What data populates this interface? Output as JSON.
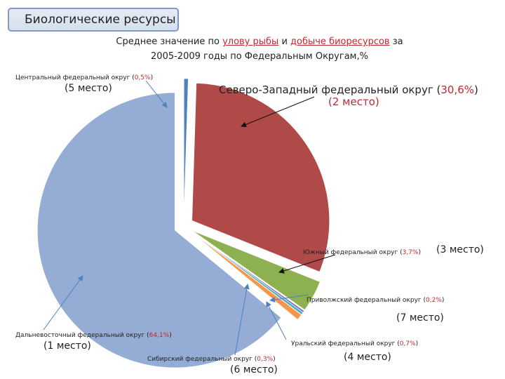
{
  "section_title": "Биологические ресурсы",
  "chart_data": {
    "type": "pie",
    "title_parts": [
      {
        "text": "Среднее значение по ",
        "highlight": false
      },
      {
        "text": "улову рыбы",
        "highlight": true
      },
      {
        "text": " и ",
        "highlight": false
      },
      {
        "text": "добыче биоресурсов",
        "highlight": true
      },
      {
        "text": " за",
        "highlight": false
      }
    ],
    "title_line2": "2005-2009 годы по Федеральным Округам,%",
    "slices": [
      {
        "name": "Центральный федеральный округ",
        "value": 0.5,
        "value_label": "0,5%",
        "rank": "(5 место)",
        "color": "#4f81bd",
        "exploded": true
      },
      {
        "name": "Северо-Западный федеральный округ",
        "value": 30.6,
        "value_label": "30,6%",
        "rank": "(2 место)",
        "color": "#b04a48",
        "exploded": true
      },
      {
        "name": "Южный федеральный округ",
        "value": 3.7,
        "value_label": "3,7%",
        "rank": "(3 место)",
        "color": "#8db050",
        "exploded": true
      },
      {
        "name": "Приволжский федеральный округ",
        "value": 0.2,
        "value_label": "0,2%",
        "rank": "(7 место)",
        "color": "#7a62a8",
        "exploded": true
      },
      {
        "name": "Сибирский федеральный округ",
        "value": 0.3,
        "value_label": "0,3%",
        "rank": "(6 место)",
        "color": "#4bacc6",
        "exploded": true
      },
      {
        "name": "Уральский федеральный округ",
        "value": 0.7,
        "value_label": "0,7%",
        "rank": "(4 место)",
        "color": "#f79646",
        "exploded": true
      },
      {
        "name": "Дальневосточный федеральный округ",
        "value": 64.1,
        "value_label": "64,1%",
        "rank": "(1 место)",
        "color": "#95acd4",
        "exploded": true
      }
    ]
  }
}
